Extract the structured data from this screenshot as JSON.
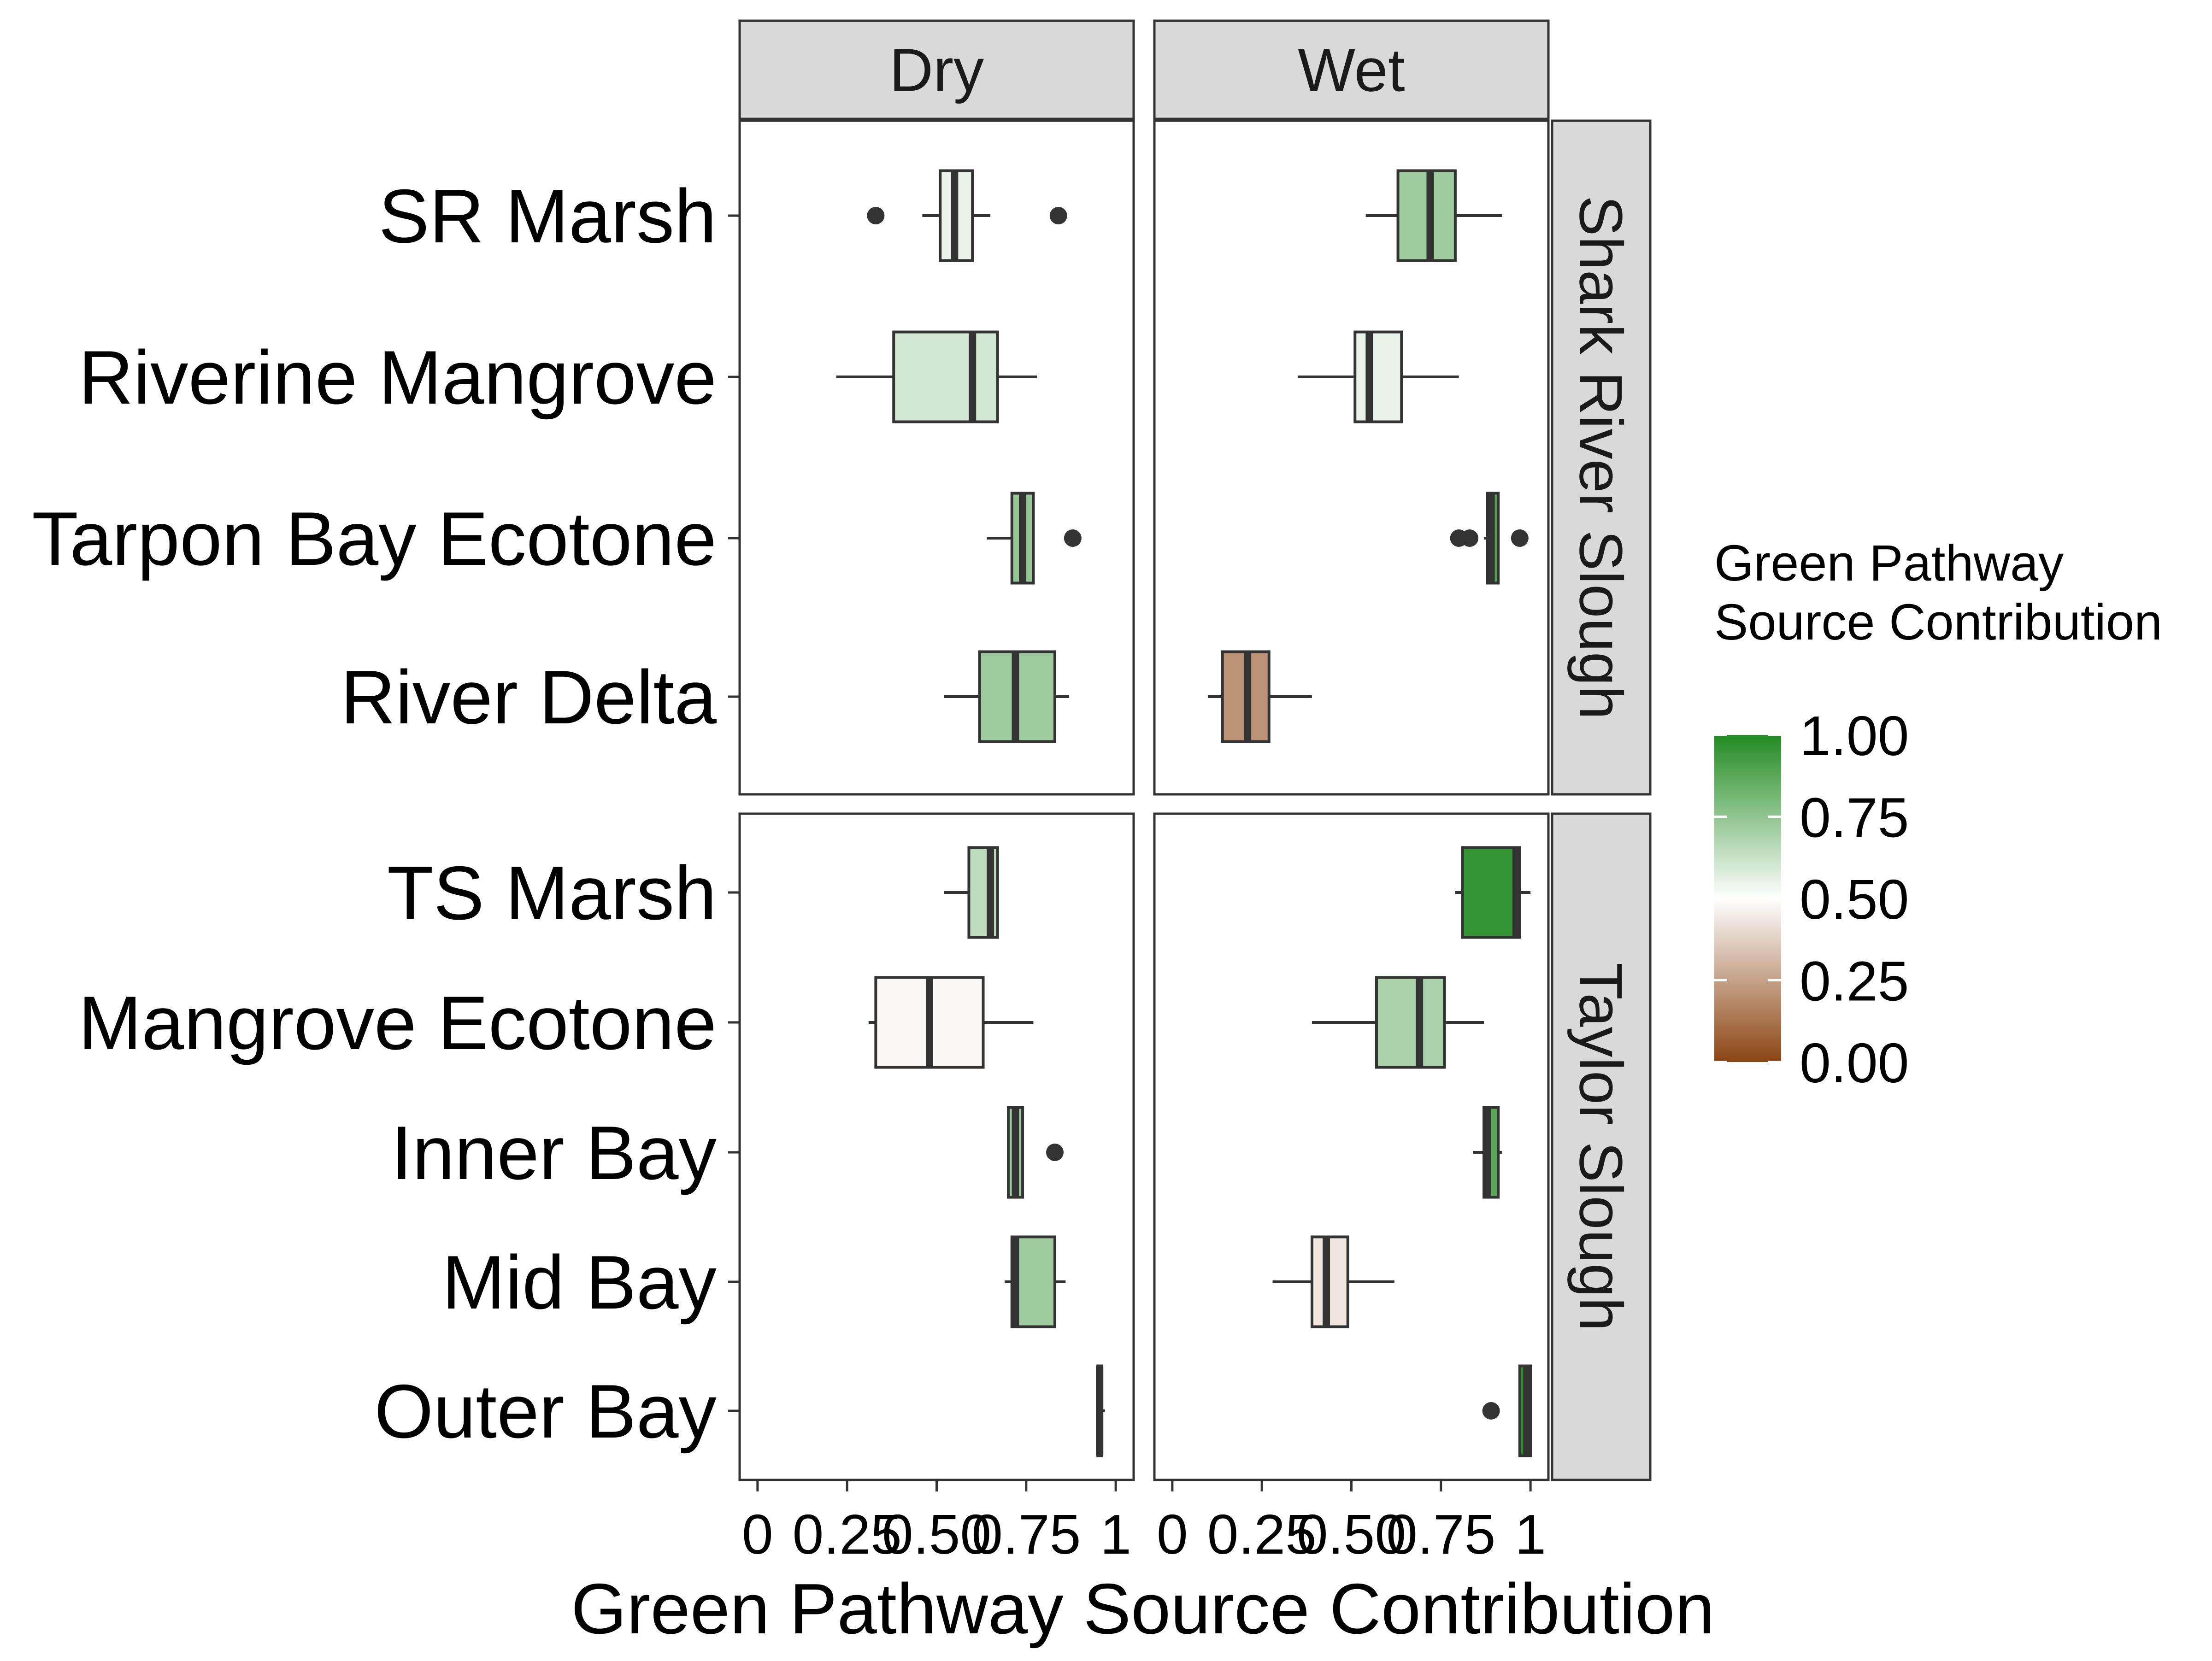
{
  "chart_data": {
    "type": "boxplot",
    "xlabel": "Green Pathway Source Contribution",
    "x_tick_labels": [
      "0",
      "0.25",
      "0.50",
      "0.75",
      "1"
    ],
    "x_ticks": [
      0,
      0.25,
      0.5,
      0.75,
      1
    ],
    "xlim": [
      -0.05,
      1.05
    ],
    "columns": [
      "Dry",
      "Wet"
    ],
    "rows": [
      {
        "name": "Shark River Slough",
        "categories": [
          "SR Marsh",
          "Riverine Mangrove",
          "Tarpon Bay Ecotone",
          "River Delta"
        ]
      },
      {
        "name": "Taylor Slough",
        "categories": [
          "TS Marsh",
          "Mangrove Ecotone",
          "Inner Bay",
          "Mid Bay",
          "Outer Bay"
        ]
      }
    ],
    "legend": {
      "title_lines": [
        "Green Pathway",
        "Source Contribution"
      ],
      "ticks": [
        1.0,
        0.75,
        0.5,
        0.25,
        0.0
      ],
      "tick_labels": [
        "1.00",
        "0.75",
        "0.50",
        "0.25",
        "0.00"
      ],
      "colors": {
        "low": "#8b4513",
        "mid": "#ffffff",
        "high": "#228b22"
      }
    },
    "series": [
      {
        "column": "Dry",
        "row": "Shark River Slough",
        "category": "SR Marsh",
        "min": 0.46,
        "q1": 0.51,
        "median": 0.55,
        "q3": 0.6,
        "max": 0.65,
        "outliers": [
          0.33,
          0.84
        ]
      },
      {
        "column": "Dry",
        "row": "Shark River Slough",
        "category": "Riverine Mangrove",
        "min": 0.22,
        "q1": 0.38,
        "median": 0.6,
        "q3": 0.67,
        "max": 0.78,
        "outliers": []
      },
      {
        "column": "Dry",
        "row": "Shark River Slough",
        "category": "Tarpon Bay Ecotone",
        "min": 0.64,
        "q1": 0.71,
        "median": 0.74,
        "q3": 0.77,
        "max": 0.77,
        "outliers": [
          0.88
        ]
      },
      {
        "column": "Dry",
        "row": "Shark River Slough",
        "category": "River Delta",
        "min": 0.52,
        "q1": 0.62,
        "median": 0.72,
        "q3": 0.83,
        "max": 0.87,
        "outliers": []
      },
      {
        "column": "Dry",
        "row": "Taylor Slough",
        "category": "TS Marsh",
        "min": 0.52,
        "q1": 0.59,
        "median": 0.65,
        "q3": 0.67,
        "max": 0.67,
        "outliers": []
      },
      {
        "column": "Dry",
        "row": "Taylor Slough",
        "category": "Mangrove Ecotone",
        "min": 0.31,
        "q1": 0.33,
        "median": 0.48,
        "q3": 0.63,
        "max": 0.77,
        "outliers": []
      },
      {
        "column": "Dry",
        "row": "Taylor Slough",
        "category": "Inner Bay",
        "min": 0.7,
        "q1": 0.7,
        "median": 0.72,
        "q3": 0.74,
        "max": 0.74,
        "outliers": [
          0.83
        ]
      },
      {
        "column": "Dry",
        "row": "Taylor Slough",
        "category": "Mid Bay",
        "min": 0.69,
        "q1": 0.71,
        "median": 0.72,
        "q3": 0.83,
        "max": 0.86,
        "outliers": []
      },
      {
        "column": "Dry",
        "row": "Taylor Slough",
        "category": "Outer Bay",
        "min": 0.95,
        "q1": 0.95,
        "median": 0.955,
        "q3": 0.96,
        "max": 0.97,
        "outliers": []
      },
      {
        "column": "Wet",
        "row": "Shark River Slough",
        "category": "SR Marsh",
        "min": 0.54,
        "q1": 0.63,
        "median": 0.72,
        "q3": 0.79,
        "max": 0.92,
        "outliers": []
      },
      {
        "column": "Wet",
        "row": "Shark River Slough",
        "category": "Riverine Mangrove",
        "min": 0.35,
        "q1": 0.51,
        "median": 0.55,
        "q3": 0.64,
        "max": 0.8,
        "outliers": []
      },
      {
        "column": "Wet",
        "row": "Shark River Slough",
        "category": "Tarpon Bay Ecotone",
        "min": 0.87,
        "q1": 0.88,
        "median": 0.89,
        "q3": 0.91,
        "max": 0.91,
        "outliers": [
          0.8,
          0.83,
          0.97
        ]
      },
      {
        "column": "Wet",
        "row": "Shark River Slough",
        "category": "River Delta",
        "min": 0.1,
        "q1": 0.14,
        "median": 0.21,
        "q3": 0.27,
        "max": 0.39,
        "outliers": []
      },
      {
        "column": "Wet",
        "row": "Taylor Slough",
        "category": "TS Marsh",
        "min": 0.79,
        "q1": 0.81,
        "median": 0.96,
        "q3": 0.97,
        "max": 1.0,
        "outliers": []
      },
      {
        "column": "Wet",
        "row": "Taylor Slough",
        "category": "Mangrove Ecotone",
        "min": 0.39,
        "q1": 0.57,
        "median": 0.69,
        "q3": 0.76,
        "max": 0.87,
        "outliers": []
      },
      {
        "column": "Wet",
        "row": "Taylor Slough",
        "category": "Inner Bay",
        "min": 0.84,
        "q1": 0.87,
        "median": 0.88,
        "q3": 0.91,
        "max": 0.92,
        "outliers": []
      },
      {
        "column": "Wet",
        "row": "Taylor Slough",
        "category": "Mid Bay",
        "min": 0.28,
        "q1": 0.39,
        "median": 0.43,
        "q3": 0.49,
        "max": 0.62,
        "outliers": []
      },
      {
        "column": "Wet",
        "row": "Taylor Slough",
        "category": "Outer Bay",
        "min": 0.97,
        "q1": 0.97,
        "median": 0.99,
        "q3": 1.0,
        "max": 1.0,
        "outliers": [
          0.89
        ]
      }
    ]
  }
}
